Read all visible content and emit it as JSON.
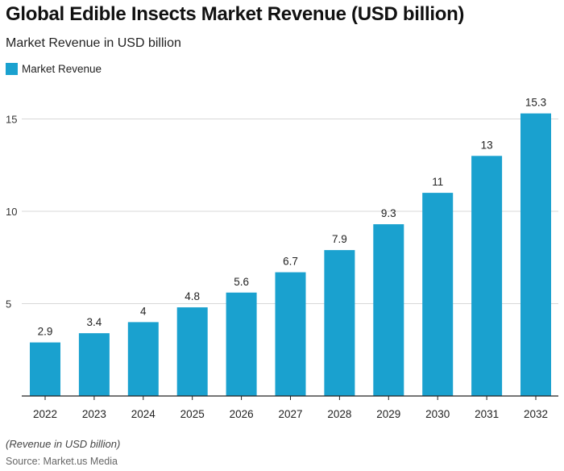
{
  "title": "Global Edible Insects Market Revenue (USD billion)",
  "subtitle": "Market Revenue in USD billion",
  "note": "(Revenue in USD billion)",
  "source": "Source: Market.us Media",
  "colors": {
    "bar": "#1aa1cf",
    "grid": "#d8d8d8",
    "axis": "#222222"
  },
  "chart_data": {
    "type": "bar",
    "categories": [
      "2022",
      "2023",
      "2024",
      "2025",
      "2026",
      "2027",
      "2028",
      "2029",
      "2030",
      "2031",
      "2032"
    ],
    "series": [
      {
        "name": "Market Revenue",
        "values": [
          2.9,
          3.4,
          4,
          4.8,
          5.6,
          6.7,
          7.9,
          9.3,
          11,
          13,
          15.3
        ]
      }
    ],
    "value_labels": [
      "2.9",
      "3.4",
      "4",
      "4.8",
      "5.6",
      "6.7",
      "7.9",
      "9.3",
      "11",
      "13",
      "15.3"
    ],
    "yticks": [
      5,
      10,
      15
    ],
    "ylim": [
      0,
      17
    ],
    "grid": true,
    "legend": "top-left",
    "xlabel": "",
    "ylabel": ""
  }
}
